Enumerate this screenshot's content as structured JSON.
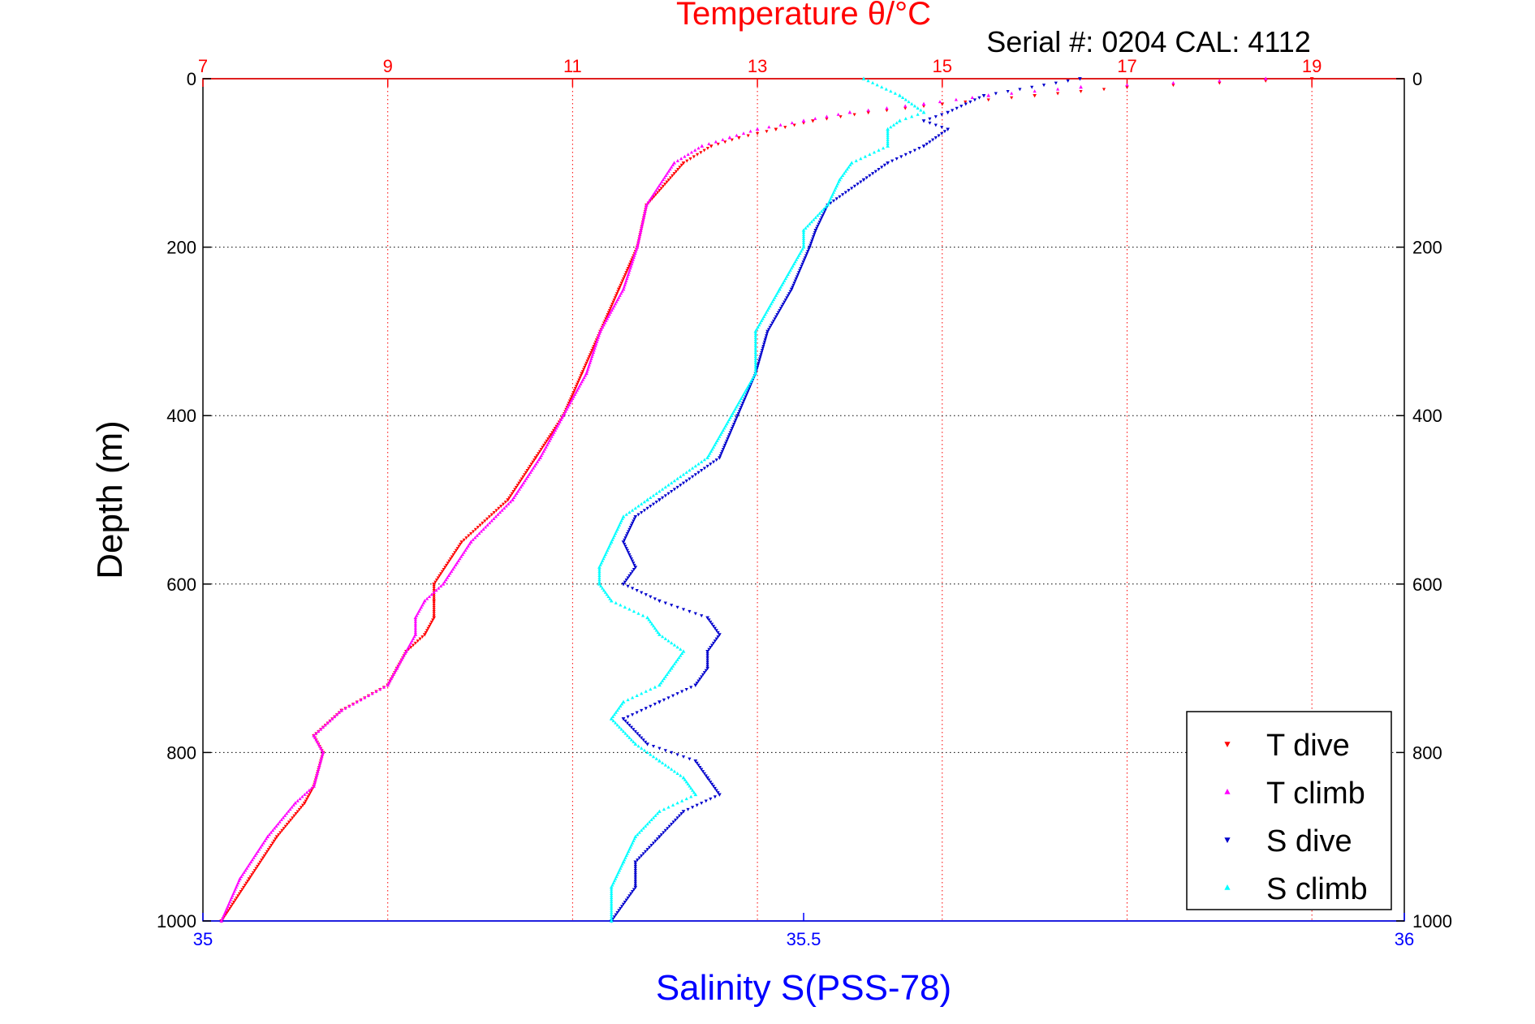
{
  "serial_text": "Serial #: 0204  CAL: 4112",
  "colors": {
    "temp_axis": "#ff0000",
    "sal_axis": "#0000ff",
    "t_dive": "#ff0000",
    "t_climb": "#ff00ff",
    "s_dive": "#0000cc",
    "s_climb": "#00ffff"
  },
  "chart_data": {
    "type": "scatter",
    "title": "Temperature θ/°C",
    "xlabel": "Salinity S(PSS-78)",
    "ylabel": "Depth (m)",
    "x_top": {
      "label": "Temperature θ/°C",
      "lim": [
        7,
        20
      ],
      "ticks": [
        7,
        9,
        11,
        13,
        15,
        17,
        19
      ]
    },
    "x_bottom": {
      "label": "Salinity S(PSS-78)",
      "lim": [
        35,
        36
      ],
      "ticks": [
        35,
        35.5,
        36
      ]
    },
    "y": {
      "label": "Depth (m)",
      "lim": [
        0,
        1000
      ],
      "reversed": true,
      "ticks": [
        0,
        200,
        400,
        600,
        800,
        1000
      ]
    },
    "grid": true,
    "legend": {
      "placement": "bottom-right",
      "entries": [
        "T dive",
        "T climb",
        "S dive",
        "S climb"
      ]
    },
    "series": [
      {
        "name": "T dive",
        "axis": "temperature",
        "marker": "triangle-down",
        "color": "#ff0000",
        "depth": [
          0,
          10,
          20,
          30,
          40,
          50,
          60,
          70,
          80,
          100,
          150,
          200,
          250,
          300,
          350,
          400,
          450,
          500,
          550,
          600,
          620,
          640,
          660,
          680,
          700,
          720,
          750,
          780,
          800,
          840,
          860,
          900,
          950,
          1000
        ],
        "values": [
          19.0,
          17.0,
          16.0,
          15.0,
          14.2,
          13.6,
          13.2,
          12.8,
          12.5,
          12.2,
          11.8,
          11.7,
          11.5,
          11.3,
          11.1,
          10.9,
          10.6,
          10.3,
          9.8,
          9.5,
          9.5,
          9.5,
          9.4,
          9.2,
          9.1,
          9.0,
          8.5,
          8.2,
          8.3,
          8.2,
          8.1,
          7.8,
          7.5,
          7.2
        ]
      },
      {
        "name": "T climb",
        "axis": "temperature",
        "marker": "triangle-up",
        "color": "#ff00ff",
        "depth": [
          0,
          10,
          20,
          30,
          40,
          50,
          60,
          70,
          80,
          100,
          150,
          200,
          250,
          300,
          350,
          400,
          450,
          500,
          550,
          600,
          620,
          640,
          660,
          680,
          700,
          720,
          750,
          780,
          800,
          840,
          860,
          900,
          950,
          1000
        ],
        "values": [
          18.5,
          16.5,
          15.5,
          14.8,
          14.0,
          13.5,
          13.0,
          12.7,
          12.4,
          12.1,
          11.8,
          11.7,
          11.55,
          11.3,
          11.15,
          10.9,
          10.65,
          10.35,
          9.9,
          9.6,
          9.4,
          9.3,
          9.3,
          9.2,
          9.1,
          9.0,
          8.5,
          8.2,
          8.3,
          8.2,
          8.0,
          7.7,
          7.4,
          7.2
        ]
      },
      {
        "name": "S dive",
        "axis": "salinity",
        "marker": "triangle-down",
        "color": "#0000cc",
        "depth": [
          0,
          20,
          40,
          50,
          60,
          80,
          100,
          120,
          150,
          180,
          200,
          250,
          300,
          350,
          400,
          450,
          500,
          520,
          550,
          580,
          600,
          620,
          640,
          660,
          680,
          700,
          720,
          740,
          760,
          790,
          810,
          830,
          850,
          870,
          900,
          930,
          960,
          1000
        ],
        "values": [
          35.73,
          35.65,
          35.62,
          35.6,
          35.62,
          35.6,
          35.57,
          35.55,
          35.52,
          35.51,
          35.505,
          35.49,
          35.47,
          35.46,
          35.445,
          35.43,
          35.38,
          35.36,
          35.35,
          35.36,
          35.35,
          35.38,
          35.42,
          35.43,
          35.42,
          35.42,
          35.41,
          35.38,
          35.35,
          35.37,
          35.41,
          35.42,
          35.43,
          35.4,
          35.38,
          35.36,
          35.36,
          35.34
        ]
      },
      {
        "name": "S climb",
        "axis": "salinity",
        "marker": "triangle-up",
        "color": "#00ffff",
        "depth": [
          0,
          20,
          40,
          50,
          60,
          80,
          100,
          120,
          150,
          180,
          200,
          250,
          300,
          350,
          400,
          450,
          500,
          520,
          550,
          580,
          600,
          620,
          640,
          660,
          680,
          700,
          720,
          740,
          760,
          790,
          810,
          830,
          850,
          870,
          900,
          930,
          960,
          1000
        ],
        "values": [
          35.55,
          35.58,
          35.6,
          35.58,
          35.57,
          35.57,
          35.54,
          35.53,
          35.52,
          35.5,
          35.5,
          35.48,
          35.46,
          35.46,
          35.44,
          35.42,
          35.37,
          35.35,
          35.34,
          35.33,
          35.33,
          35.34,
          35.37,
          35.38,
          35.4,
          35.39,
          35.38,
          35.35,
          35.34,
          35.36,
          35.38,
          35.4,
          35.41,
          35.38,
          35.36,
          35.35,
          35.34,
          35.34
        ]
      }
    ]
  }
}
